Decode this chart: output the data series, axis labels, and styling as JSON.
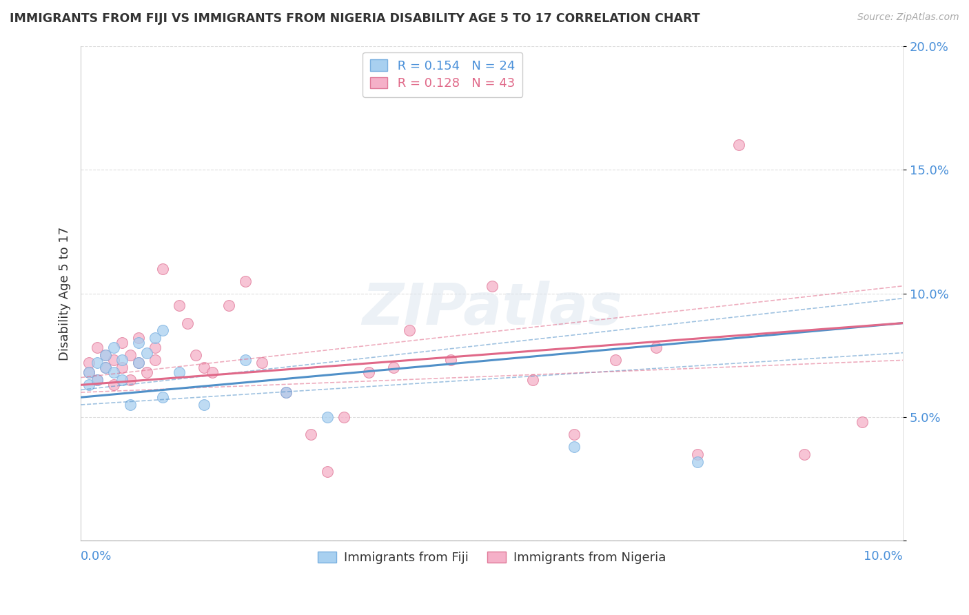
{
  "title": "IMMIGRANTS FROM FIJI VS IMMIGRANTS FROM NIGERIA DISABILITY AGE 5 TO 17 CORRELATION CHART",
  "source": "Source: ZipAtlas.com",
  "ylabel": "Disability Age 5 to 17",
  "xlim": [
    0.0,
    0.1
  ],
  "ylim": [
    0.0,
    0.2
  ],
  "yticks": [
    0.0,
    0.05,
    0.1,
    0.15,
    0.2
  ],
  "ytick_labels": [
    "",
    "5.0%",
    "10.0%",
    "15.0%",
    "20.0%"
  ],
  "fiji_color": "#a8d0f0",
  "fiji_color_edge": "#7ab0e0",
  "fiji_line_color": "#5090c8",
  "nigeria_color": "#f5b0c8",
  "nigeria_color_edge": "#e07898",
  "nigeria_line_color": "#e06888",
  "fiji_R": 0.154,
  "fiji_N": 24,
  "nigeria_R": 0.128,
  "nigeria_N": 43,
  "fiji_x": [
    0.001,
    0.001,
    0.002,
    0.002,
    0.003,
    0.003,
    0.004,
    0.004,
    0.005,
    0.005,
    0.006,
    0.007,
    0.007,
    0.008,
    0.009,
    0.01,
    0.01,
    0.012,
    0.015,
    0.02,
    0.025,
    0.03,
    0.06,
    0.075
  ],
  "fiji_y": [
    0.063,
    0.068,
    0.065,
    0.072,
    0.07,
    0.075,
    0.068,
    0.078,
    0.073,
    0.065,
    0.055,
    0.072,
    0.08,
    0.076,
    0.082,
    0.058,
    0.085,
    0.068,
    0.055,
    0.073,
    0.06,
    0.05,
    0.038,
    0.032
  ],
  "nigeria_x": [
    0.001,
    0.001,
    0.002,
    0.002,
    0.003,
    0.003,
    0.004,
    0.004,
    0.005,
    0.005,
    0.006,
    0.006,
    0.007,
    0.007,
    0.008,
    0.009,
    0.009,
    0.01,
    0.012,
    0.013,
    0.014,
    0.015,
    0.016,
    0.018,
    0.02,
    0.022,
    0.025,
    0.028,
    0.03,
    0.032,
    0.035,
    0.038,
    0.04,
    0.045,
    0.05,
    0.055,
    0.06,
    0.065,
    0.07,
    0.075,
    0.08,
    0.088,
    0.095
  ],
  "nigeria_y": [
    0.072,
    0.068,
    0.078,
    0.065,
    0.075,
    0.07,
    0.073,
    0.063,
    0.08,
    0.07,
    0.065,
    0.075,
    0.072,
    0.082,
    0.068,
    0.078,
    0.073,
    0.11,
    0.095,
    0.088,
    0.075,
    0.07,
    0.068,
    0.095,
    0.105,
    0.072,
    0.06,
    0.043,
    0.028,
    0.05,
    0.068,
    0.07,
    0.085,
    0.073,
    0.103,
    0.065,
    0.043,
    0.073,
    0.078,
    0.035,
    0.16,
    0.035,
    0.048
  ],
  "watermark_text": "ZIPatlas",
  "background_color": "#ffffff",
  "grid_color": "#dddddd",
  "legend_box_color": "#ffffff",
  "legend_box_edge": "#cccccc"
}
